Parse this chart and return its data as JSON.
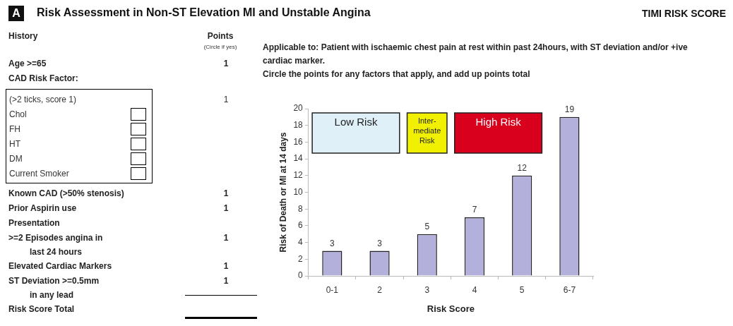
{
  "chart_data": [
    {
      "type": "other",
      "title": "Risk Assessment in Non-ST Elevation MI and Unstable Angina",
      "subtitle": "TIMI RISK SCORE",
      "annotations": [
        "A",
        "History",
        "Points",
        "(Circle if yes)",
        "Age    >=65",
        "1",
        "CAD Risk Factor:",
        "(>2 ticks, score 1)",
        "1",
        "Chol",
        "FH",
        "HT",
        "DM",
        "Current Smoker",
        "Known CAD (>50% stenosis)",
        "1",
        "Prior Aspirin use",
        "1",
        "Presentation",
        ">=2 Episodes angina in\nlast 24 hours",
        "1",
        "Elevated Cardiac Markers",
        "1",
        "ST Deviation >=0.5mm\nin any lead",
        "1",
        "Risk Score Total"
      ]
    },
    {
      "type": "bar",
      "annotations": [
        "Applicable to: Patient with ischaemic chest pain at rest within past 24hours, with ST deviation and/or +ive cardiac marker.",
        "Circle the points for any factors that apply, and add up points total"
      ],
      "categories": [
        "0-1",
        "2",
        "3",
        "4",
        "5",
        "6-7"
      ],
      "values": [
        3,
        3,
        5,
        7,
        12,
        19
      ],
      "color": "#b4b0dc",
      "data_labels": true,
      "xlabel": "Risk Score",
      "ylabel": "Risk of Death or MI at 14 days",
      "ylim": [
        0,
        20
      ],
      "yticks": [
        0,
        2,
        4,
        6,
        8,
        10,
        12,
        14,
        16,
        18,
        20
      ],
      "bands": [
        {
          "axis": "x",
          "from": "0-1",
          "to": "2",
          "label": "Low Risk",
          "color": "#dff0f8"
        },
        {
          "axis": "x",
          "from": "3",
          "to": "3",
          "label": "Inter- mediate Risk",
          "color": "#f0f000"
        },
        {
          "axis": "x",
          "from": "4",
          "to": "5",
          "label": "High Risk",
          "color": "#d8001c"
        }
      ]
    }
  ]
}
